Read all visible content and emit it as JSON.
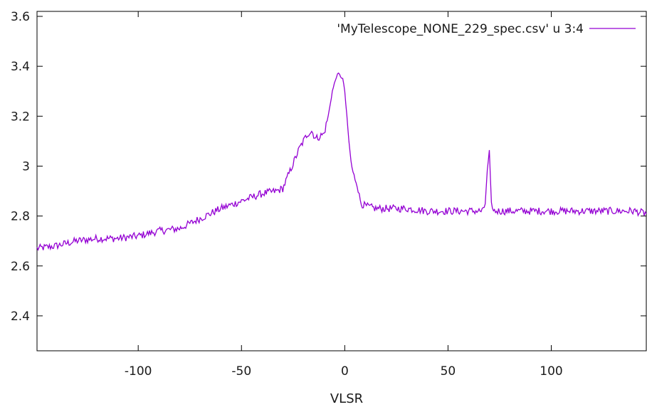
{
  "chart_data": {
    "type": "line",
    "title": "",
    "xlabel": "VLSR",
    "ylabel": "",
    "xlim": [
      -149,
      146
    ],
    "ylim": [
      2.26,
      3.62
    ],
    "xticks": [
      -100,
      -50,
      0,
      50,
      100
    ],
    "xtick_labels": [
      "-100",
      "-50",
      "0",
      "50",
      "100"
    ],
    "yticks": [
      2.4,
      2.6,
      2.8,
      3.0,
      3.2,
      3.4,
      3.6
    ],
    "ytick_labels": [
      "2.4",
      "2.6",
      "2.8",
      "3",
      "3.2",
      "3.4",
      "3.6"
    ],
    "grid": false,
    "legend_position": "top-right",
    "series": [
      {
        "name": "'MyTelescope_NONE_229_spec.csv' u 3:4",
        "color": "#9400d3",
        "x": [
          -149,
          -140,
          -130,
          -120,
          -110,
          -100,
          -90,
          -80,
          -70,
          -60,
          -50,
          -40,
          -33,
          -30,
          -26,
          -22,
          -18,
          -16,
          -14,
          -12,
          -10,
          -8,
          -6,
          -4,
          -3,
          -2,
          -1,
          0,
          1,
          2,
          3,
          4,
          5,
          6,
          7,
          8,
          10,
          15,
          20,
          30,
          40,
          50,
          60,
          67,
          68,
          69,
          70,
          71,
          72,
          80,
          90,
          100,
          110,
          120,
          130,
          140,
          146
        ],
        "y": [
          2.67,
          2.68,
          2.7,
          2.71,
          2.71,
          2.72,
          2.74,
          2.75,
          2.79,
          2.83,
          2.86,
          2.89,
          2.9,
          2.91,
          2.99,
          3.07,
          3.13,
          3.14,
          3.11,
          3.12,
          3.13,
          3.2,
          3.3,
          3.36,
          3.37,
          3.36,
          3.35,
          3.3,
          3.2,
          3.1,
          3.02,
          2.97,
          2.95,
          2.93,
          2.88,
          2.85,
          2.84,
          2.83,
          2.83,
          2.83,
          2.82,
          2.82,
          2.82,
          2.82,
          2.85,
          2.98,
          3.06,
          2.85,
          2.82,
          2.82,
          2.82,
          2.82,
          2.82,
          2.82,
          2.82,
          2.82,
          2.81
        ]
      }
    ]
  }
}
